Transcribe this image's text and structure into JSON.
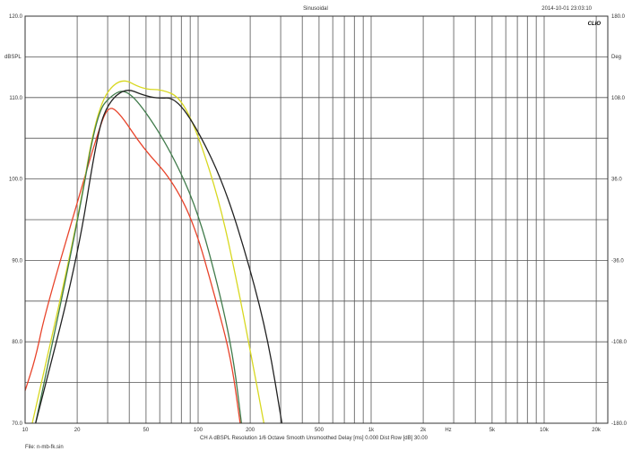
{
  "header": {
    "title": "Sinusoidal",
    "timestamp": "2014-10-01 23:03:10",
    "logo": "CLIO"
  },
  "footer": {
    "settings": "CH A   dBSPL   Resolution 1/6 Octave   Smooth Unsmoothed   Delay [ms] 0.000   Dist Row [dB] 30.00",
    "file": "File: n-mb-fk.sin"
  },
  "chart_data": {
    "type": "line",
    "title": "Sinusoidal",
    "xlabel": "Hz",
    "ylabel": "dBSPL",
    "y2label": "Deg",
    "xscale": "log",
    "xlim": [
      10,
      20000
    ],
    "ylim": [
      70,
      120
    ],
    "y2lim": [
      -180,
      180
    ],
    "grid": true,
    "x_ticks": [
      {
        "v": 10,
        "label": "10"
      },
      {
        "v": 20,
        "label": "20"
      },
      {
        "v": 50,
        "label": "50"
      },
      {
        "v": 100,
        "label": "100"
      },
      {
        "v": 200,
        "label": "200"
      },
      {
        "v": 500,
        "label": "500"
      },
      {
        "v": 1000,
        "label": "1k"
      },
      {
        "v": 2000,
        "label": "2k"
      },
      {
        "v": 5000,
        "label": "5k"
      },
      {
        "v": 10000,
        "label": "10k"
      },
      {
        "v": 20000,
        "label": "20k"
      }
    ],
    "y_ticks": [
      {
        "v": 120,
        "label": "120.0"
      },
      {
        "v": 110,
        "label": "110.0"
      },
      {
        "v": 100,
        "label": "100.0"
      },
      {
        "v": 90,
        "label": "90.0"
      },
      {
        "v": 80,
        "label": "80.0"
      },
      {
        "v": 70,
        "label": "70.0"
      }
    ],
    "y2_ticks": [
      {
        "v": 180,
        "label": "180.0"
      },
      {
        "v": 108,
        "label": "108.0"
      },
      {
        "v": 36,
        "label": "36.0"
      },
      {
        "v": -36,
        "label": "-36.0"
      },
      {
        "v": -108,
        "label": "-108.0"
      },
      {
        "v": -180,
        "label": "-180.0"
      }
    ],
    "series": [
      {
        "color": "#e8432a",
        "x": [
          10,
          11.5,
          13,
          20,
          26,
          30,
          35,
          48,
          70,
          95,
          125,
          155,
          175
        ],
        "y": [
          74,
          78,
          83.4,
          97.1,
          105.3,
          109,
          108.2,
          103.8,
          100,
          94.5,
          85.6,
          78,
          70
        ]
      },
      {
        "color": "#d8d820",
        "x": [
          11,
          20,
          26,
          35,
          48,
          62,
          79,
          100,
          135,
          170,
          200,
          240
        ],
        "y": [
          70,
          94.4,
          108.8,
          112.6,
          111,
          111,
          110,
          105.5,
          96.7,
          86.7,
          79,
          70
        ]
      },
      {
        "color": "#3f7a4a",
        "x": [
          11.5,
          20,
          26,
          32,
          38,
          48,
          70,
          100,
          135,
          160,
          178
        ],
        "y": [
          70,
          94.4,
          108.2,
          110.4,
          111,
          108.8,
          103.3,
          96,
          85.6,
          78,
          70
        ]
      },
      {
        "color": "#222222",
        "x": [
          11.5,
          20,
          26,
          30,
          38,
          48,
          58,
          74,
          100,
          143,
          200,
          255,
          305
        ],
        "y": [
          70,
          90,
          105.3,
          109.3,
          111.2,
          110.3,
          109.9,
          110,
          106,
          99,
          89,
          80,
          70
        ]
      }
    ]
  }
}
